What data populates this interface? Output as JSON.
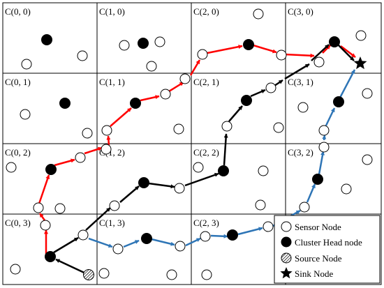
{
  "grid": {
    "cols": 4,
    "rows": 4,
    "cell_labels": [
      [
        "C(0, 0)",
        "C(1, 0)",
        "C(2, 0)",
        "C(3, 0)"
      ],
      [
        "C(0, 1)",
        "C(1, 1)",
        "C(2, 1)",
        "C(3, 1)"
      ],
      [
        "C(0, 2)",
        "C(1, 2)",
        "C(2, 2)",
        "C(3, 2)"
      ],
      [
        "C(0, 3)",
        "C(1, 3)",
        "C(2, 3)",
        "C(3, 3)"
      ]
    ]
  },
  "legend": {
    "sensor_node": "Sensor Node",
    "cluster_head_node": "Cluster Head node",
    "source_node": "Source Node",
    "sink_node": "Sink Node"
  },
  "colors": {
    "red_path": "#ff0000",
    "black_path": "#000000",
    "blue_path": "#2e75b6"
  }
}
